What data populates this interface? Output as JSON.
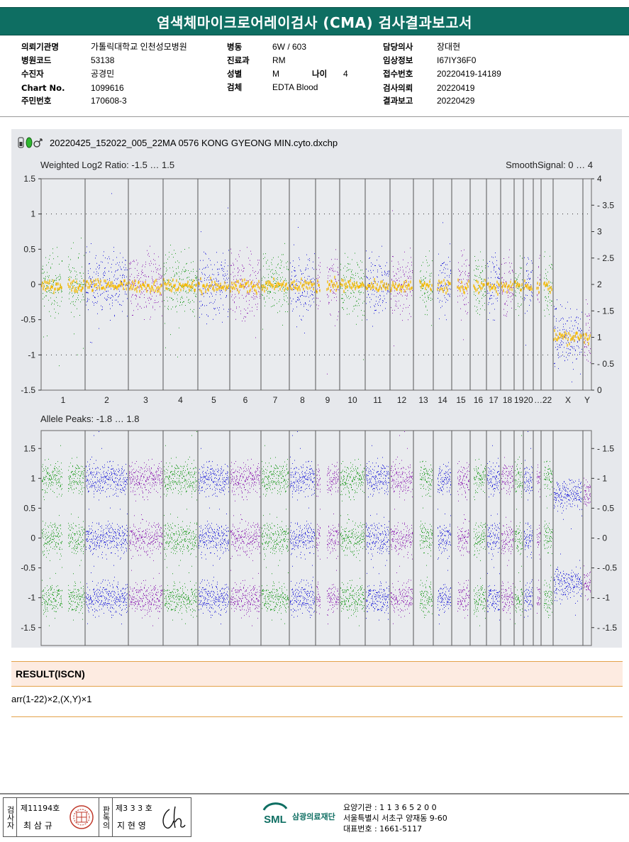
{
  "title": "염색체마이크로어레이검사 (CMA) 검사결과보고서",
  "info": {
    "col1": [
      {
        "k": "의뢰기관명",
        "v": "가톨릭대학교 인천성모병원"
      },
      {
        "k": "병원코드",
        "v": "53138"
      },
      {
        "k": "수진자",
        "v": "공경민"
      },
      {
        "k": "Chart No.",
        "v": "1099616"
      },
      {
        "k": "주민번호",
        "v": "170608-3"
      }
    ],
    "col2": [
      {
        "k": "병동",
        "v": "6W / 603"
      },
      {
        "k": "진료과",
        "v": "RM"
      },
      {
        "k": "성별",
        "v": "M"
      },
      {
        "k": "검체",
        "v": "EDTA Blood"
      }
    ],
    "age_label": "나이",
    "age_value": "4",
    "col3": [
      {
        "k": "담당의사",
        "v": "장대현"
      },
      {
        "k": "임상정보",
        "v": "I67IY36F0"
      },
      {
        "k": "접수번호",
        "v": "20220419-14189"
      },
      {
        "k": "검사의뢰",
        "v": "20220419"
      },
      {
        "k": "결과보고",
        "v": "20220429"
      }
    ]
  },
  "plot": {
    "filename": "20220425_152022_005_22MA 0576 KONG GYEONG MIN.cyto.dxchp",
    "top_label": "Weighted Log2 Ratio: -1.5 … 1.5",
    "top_right_label": "SmoothSignal: 0 … 4",
    "bottom_label": "Allele Peaks: -1.8 … 1.8",
    "top_left_ticks": [
      "1.5",
      "1",
      "0.5",
      "0",
      "-0.5",
      "-1",
      "-1.5"
    ],
    "top_right_ticks": [
      "4",
      "3.5",
      "3",
      "2.5",
      "2",
      "1.5",
      "1",
      "0.5",
      "0"
    ],
    "bottom_ticks": [
      "1.5",
      "1",
      "0.5",
      "0",
      "-0.5",
      "-1",
      "-1.5"
    ],
    "chromosomes": [
      "1",
      "2",
      "3",
      "4",
      "5",
      "6",
      "7",
      "8",
      "9",
      "10",
      "11",
      "12",
      "13",
      "14",
      "15",
      "16",
      "17",
      "18",
      "19",
      "20",
      "21",
      "22",
      "X",
      "Y"
    ],
    "chrom_labels": [
      "1",
      "2",
      "3",
      "4",
      "5",
      "6",
      "7",
      "8",
      "9",
      "10",
      "11",
      "12",
      "13",
      "14",
      "15",
      "16",
      "17",
      "18",
      "19",
      "20",
      "…",
      "22",
      "X",
      "Y"
    ],
    "colors": {
      "green": "#1a9a1a",
      "blue": "#1a1ad8",
      "purple": "#8a1ab0",
      "smooth": "#f5b800"
    }
  },
  "result": {
    "heading": "RESULT(ISCN)",
    "value": "arr(1-22)×2,(X,Y)×1"
  },
  "footer": {
    "inspector_role": "검사자",
    "inspector_no": "제11194호",
    "inspector_name": "최 삼 규",
    "approver_role": "판독의",
    "approver_no": "제3 3 3 호",
    "approver_name": "지 현 영",
    "org_logo": "SML",
    "org_name": "삼광의료재단",
    "addr1": "요양기관 : 1 1 3 6 5 2 0 0",
    "addr2": "서울특별시 서초구 양재동 9-60",
    "addr3": "대표번호 : 1661-5117"
  }
}
